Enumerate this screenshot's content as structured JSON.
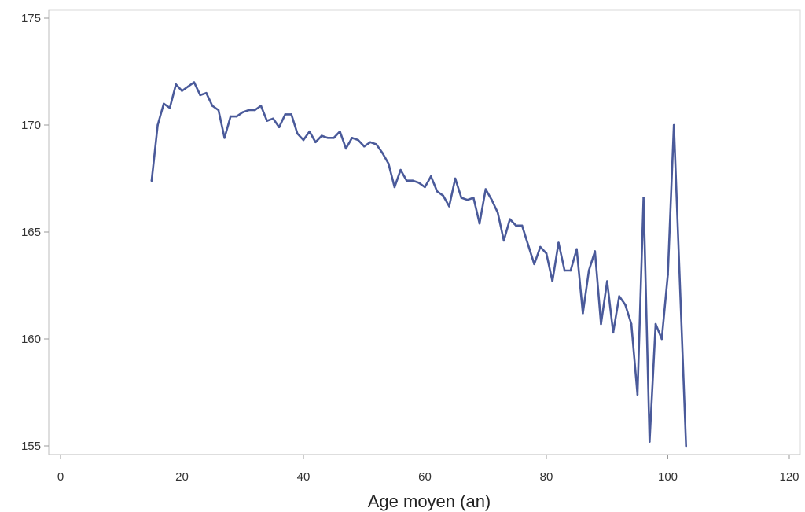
{
  "chart_data": {
    "type": "line",
    "title": "",
    "xlabel": "Age moyen (an)",
    "ylabel": "",
    "xlim": [
      0,
      120
    ],
    "ylim": [
      155,
      175
    ],
    "x_ticks": [
      "0",
      "20",
      "40",
      "60",
      "80",
      "100",
      "120"
    ],
    "y_ticks": [
      "155",
      "160",
      "165",
      "170",
      "175"
    ],
    "grid": false,
    "legend": "none",
    "line_color": "#4a5a9a",
    "series": [
      {
        "x": [
          15,
          16,
          17,
          18,
          19,
          20,
          21,
          22,
          23,
          24,
          25,
          26,
          27,
          28,
          29,
          30,
          31,
          32,
          33,
          34,
          35,
          36,
          37,
          38,
          39,
          40,
          41,
          42,
          43,
          44,
          45,
          46,
          47,
          48,
          49,
          50,
          51,
          52,
          53,
          54,
          55,
          56,
          57,
          58,
          59,
          60,
          61,
          62,
          63,
          64,
          65,
          66,
          67,
          68,
          69,
          70,
          71,
          72,
          73,
          74,
          75,
          76,
          77,
          78,
          79,
          80,
          81,
          82,
          83,
          84,
          85,
          86,
          87,
          88,
          89,
          90,
          91,
          92,
          93,
          94,
          95,
          96,
          97,
          98,
          99,
          100,
          101,
          103
        ],
        "values": [
          167.4,
          170.0,
          171.0,
          170.8,
          171.9,
          171.6,
          171.8,
          172.0,
          171.4,
          171.5,
          170.9,
          170.7,
          169.4,
          170.4,
          170.4,
          170.6,
          170.7,
          170.7,
          170.9,
          170.2,
          170.3,
          169.9,
          170.5,
          170.5,
          169.6,
          169.3,
          169.7,
          169.2,
          169.5,
          169.4,
          169.4,
          169.7,
          168.9,
          169.4,
          169.3,
          169.0,
          169.2,
          169.1,
          168.7,
          168.2,
          167.1,
          167.9,
          167.4,
          167.4,
          167.3,
          167.1,
          167.6,
          166.9,
          166.7,
          166.2,
          167.5,
          166.6,
          166.5,
          166.6,
          165.4,
          167.0,
          166.5,
          165.9,
          164.6,
          165.6,
          165.3,
          165.3,
          164.4,
          163.5,
          164.3,
          164.0,
          162.7,
          164.5,
          163.2,
          163.2,
          164.2,
          161.2,
          163.2,
          164.1,
          160.7,
          162.7,
          160.3,
          162.0,
          161.6,
          160.7,
          157.4,
          166.6,
          155.2,
          160.7,
          160.0,
          163.0,
          170.0,
          155.0
        ]
      }
    ]
  }
}
